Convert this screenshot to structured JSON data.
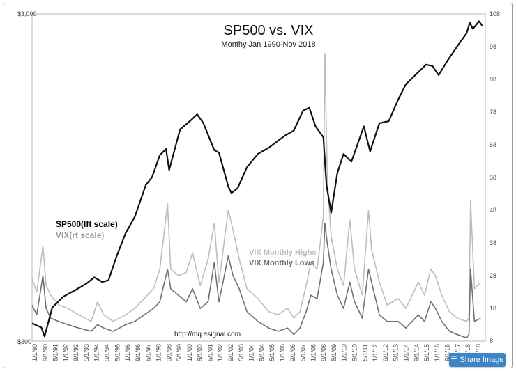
{
  "chart_data": {
    "type": "line",
    "title": "SP500 vs. VIX",
    "subtitle": "Monthy Jan 1990-Nov 2018",
    "left_axis": {
      "scale": "log",
      "range": [
        300,
        3000
      ],
      "tick_labels": [
        "$3,000",
        "$300"
      ]
    },
    "right_axis": {
      "range": [
        8,
        108
      ],
      "ticks": [
        8,
        18,
        28,
        38,
        48,
        58,
        68,
        78,
        88,
        98,
        108
      ]
    },
    "x_tick_labels": [
      "1/1/90",
      "9/1/90",
      "5/1/91",
      "1/1/92",
      "9/1/92",
      "5/1/93",
      "1/1/94",
      "9/1/94",
      "5/1/95",
      "1/1/96",
      "9/1/96",
      "5/1/97",
      "1/1/98",
      "9/1/98",
      "5/1/99",
      "1/1/00",
      "9/1/00",
      "5/1/01",
      "1/1/02",
      "9/1/02",
      "5/1/03",
      "1/1/04",
      "9/1/04",
      "5/1/05",
      "1/1/06",
      "9/1/06",
      "5/1/07",
      "1/1/08",
      "9/1/08",
      "5/1/09",
      "1/1/10",
      "9/1/10",
      "5/1/11",
      "1/1/12",
      "9/1/12",
      "5/1/13",
      "1/1/14",
      "9/1/14",
      "5/1/15",
      "1/1/16",
      "9/1/16",
      "5/1/17",
      "1/1/18",
      "9/1/18"
    ],
    "legend": {
      "sp500_label": "SP500(lft scale)",
      "vix_label": "VIX(rt scale)",
      "vix_highs_label": "VIX Monthly Highs",
      "vix_lows_label": "VIX Monthly Lows"
    },
    "annotation": "http://mq.esignal.com",
    "series": [
      {
        "name": "SP500",
        "axis": "left",
        "color": "#111111",
        "x": [
          1990.0,
          1990.6,
          1990.8,
          1991.3,
          1992.0,
          1992.8,
          1993.5,
          1994.0,
          1994.5,
          1994.9,
          1995.4,
          1996.0,
          1996.6,
          1997.3,
          1997.7,
          1998.2,
          1998.6,
          1998.8,
          1999.5,
          2000.2,
          2000.6,
          2001.0,
          2001.7,
          2002.0,
          2002.6,
          2002.8,
          2003.2,
          2003.8,
          2004.5,
          2005.2,
          2005.8,
          2006.3,
          2006.8,
          2007.4,
          2007.8,
          2008.2,
          2008.7,
          2008.9,
          2009.2,
          2009.6,
          2010.0,
          2010.5,
          2011.3,
          2011.7,
          2012.3,
          2012.9,
          2013.5,
          2014.0,
          2014.7,
          2015.3,
          2015.7,
          2016.1,
          2016.7,
          2017.3,
          2017.9,
          2018.1,
          2018.3,
          2018.7,
          2018.9
        ],
        "values": [
          340,
          330,
          310,
          380,
          410,
          430,
          450,
          470,
          455,
          460,
          540,
          640,
          720,
          900,
          950,
          1110,
          1160,
          1000,
          1330,
          1420,
          1480,
          1390,
          1150,
          1130,
          890,
          850,
          880,
          1020,
          1120,
          1170,
          1230,
          1280,
          1320,
          1520,
          1550,
          1360,
          1260,
          900,
          740,
          980,
          1120,
          1060,
          1360,
          1140,
          1390,
          1410,
          1640,
          1830,
          1970,
          2100,
          2080,
          1950,
          2170,
          2390,
          2620,
          2820,
          2700,
          2850,
          2760
        ]
      },
      {
        "name": "VIX Monthly Highs",
        "axis": "right",
        "color": "#bdbdbd",
        "x": [
          1990.0,
          1990.3,
          1990.7,
          1990.9,
          1991.2,
          1991.7,
          1992.3,
          1993.0,
          1993.8,
          1994.2,
          1994.6,
          1995.2,
          1996.0,
          1996.6,
          1997.2,
          1997.8,
          1998.2,
          1998.7,
          1998.9,
          1999.4,
          1999.9,
          2000.3,
          2000.8,
          2001.3,
          2001.7,
          2002.0,
          2002.6,
          2002.9,
          2003.3,
          2003.8,
          2004.5,
          2005.2,
          2005.8,
          2006.4,
          2006.8,
          2007.2,
          2007.6,
          2007.9,
          2008.3,
          2008.7,
          2008.8,
          2008.95,
          2009.2,
          2009.6,
          2010.0,
          2010.4,
          2010.7,
          2011.2,
          2011.6,
          2011.8,
          2012.3,
          2012.8,
          2013.5,
          2014.0,
          2014.8,
          2015.2,
          2015.6,
          2015.9,
          2016.3,
          2016.8,
          2017.3,
          2017.9,
          2018.05,
          2018.15,
          2018.4,
          2018.8
        ],
        "values": [
          27,
          23,
          37,
          25,
          22,
          19,
          18,
          16,
          14,
          20,
          16,
          14,
          16,
          18,
          21,
          24,
          30,
          50,
          30,
          28,
          29,
          35,
          25,
          33,
          44,
          26,
          48,
          42,
          33,
          24,
          21,
          17,
          16,
          18,
          15,
          17,
          25,
          32,
          30,
          46,
          96,
          58,
          40,
          30,
          25,
          45,
          30,
          22,
          48,
          36,
          26,
          19,
          21,
          18,
          26,
          22,
          30,
          28,
          22,
          17,
          15,
          14,
          15,
          51,
          24,
          26
        ]
      },
      {
        "name": "VIX Monthly Lows",
        "axis": "right",
        "color": "#707070",
        "x": [
          1990.0,
          1990.3,
          1990.7,
          1990.9,
          1991.2,
          1991.7,
          1992.3,
          1993.0,
          1993.8,
          1994.2,
          1994.6,
          1995.2,
          1996.0,
          1996.6,
          1997.2,
          1997.8,
          1998.2,
          1998.7,
          1998.9,
          1999.4,
          1999.9,
          2000.3,
          2000.8,
          2001.3,
          2001.7,
          2002.0,
          2002.6,
          2002.9,
          2003.3,
          2003.8,
          2004.5,
          2005.2,
          2005.8,
          2006.4,
          2006.8,
          2007.2,
          2007.6,
          2007.9,
          2008.3,
          2008.7,
          2008.8,
          2008.95,
          2009.2,
          2009.6,
          2010.0,
          2010.4,
          2010.7,
          2011.2,
          2011.6,
          2011.8,
          2012.3,
          2012.8,
          2013.5,
          2014.0,
          2014.8,
          2015.2,
          2015.6,
          2015.9,
          2016.3,
          2016.8,
          2017.3,
          2017.9,
          2018.05,
          2018.15,
          2018.4,
          2018.8
        ],
        "values": [
          19,
          16,
          28,
          18,
          15,
          14,
          13,
          12,
          11,
          13,
          12,
          11,
          13,
          14,
          16,
          18,
          20,
          30,
          24,
          22,
          20,
          24,
          18,
          20,
          32,
          20,
          34,
          28,
          24,
          17,
          14,
          12,
          11,
          12,
          10,
          12,
          17,
          22,
          21,
          32,
          44,
          38,
          30,
          22,
          18,
          26,
          20,
          15,
          30,
          26,
          16,
          14,
          14,
          12,
          16,
          14,
          20,
          18,
          14,
          11,
          10,
          9,
          10,
          30,
          14,
          15
        ]
      }
    ]
  },
  "ui": {
    "share_label": "Share Image",
    "share_icon": "layers-icon"
  },
  "colors": {
    "share_button": "#3d85c6"
  }
}
